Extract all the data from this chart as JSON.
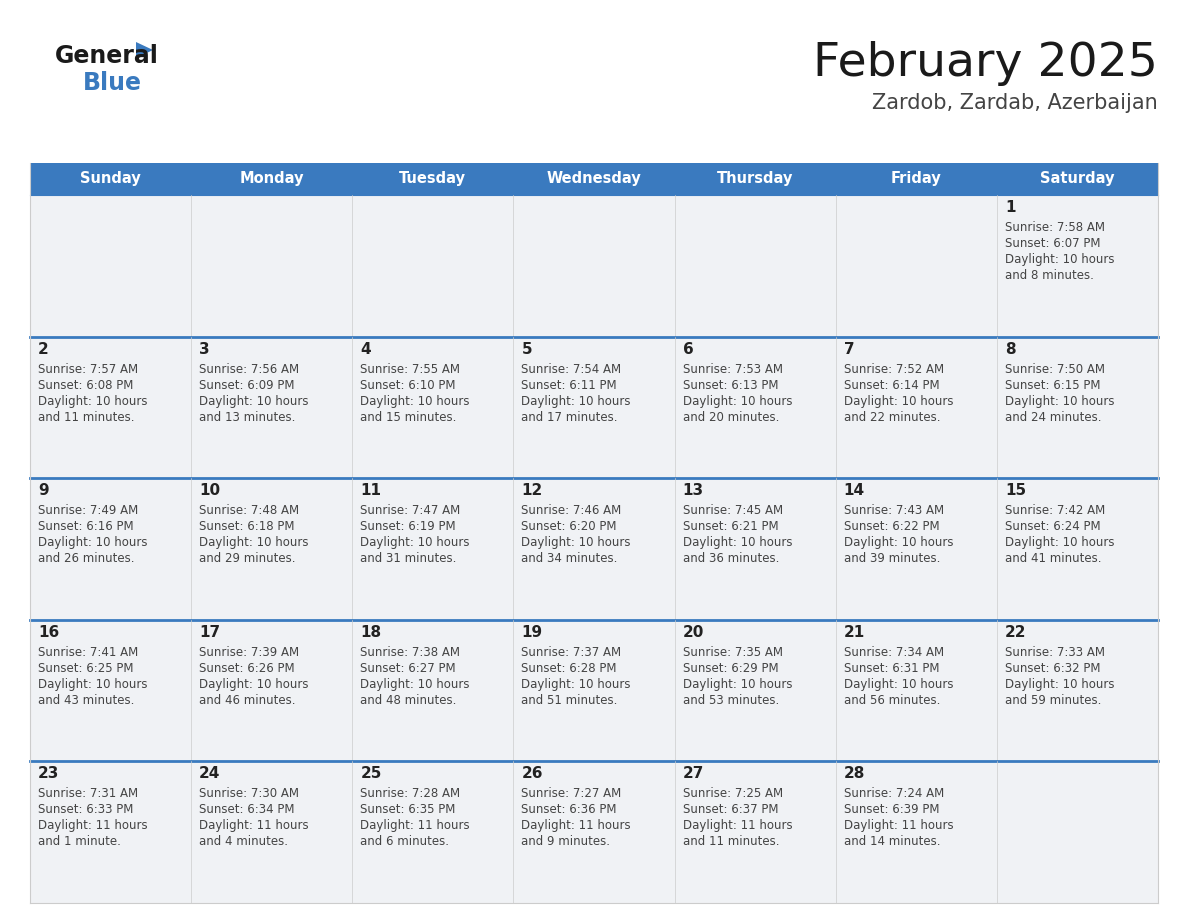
{
  "title": "February 2025",
  "subtitle": "Zardob, Zardab, Azerbaijan",
  "header_bg": "#3a7abf",
  "header_text_color": "#ffffff",
  "cell_bg": "#f0f2f5",
  "cell_bg_white": "#ffffff",
  "row_separator_color": "#3a7abf",
  "cell_border_color": "#cccccc",
  "text_color": "#333333",
  "day_num_color": "#222222",
  "info_text_color": "#444444",
  "day_headers": [
    "Sunday",
    "Monday",
    "Tuesday",
    "Wednesday",
    "Thursday",
    "Friday",
    "Saturday"
  ],
  "weeks": [
    [
      {
        "day": "",
        "info": ""
      },
      {
        "day": "",
        "info": ""
      },
      {
        "day": "",
        "info": ""
      },
      {
        "day": "",
        "info": ""
      },
      {
        "day": "",
        "info": ""
      },
      {
        "day": "",
        "info": ""
      },
      {
        "day": "1",
        "info": "Sunrise: 7:58 AM\nSunset: 6:07 PM\nDaylight: 10 hours\nand 8 minutes."
      }
    ],
    [
      {
        "day": "2",
        "info": "Sunrise: 7:57 AM\nSunset: 6:08 PM\nDaylight: 10 hours\nand 11 minutes."
      },
      {
        "day": "3",
        "info": "Sunrise: 7:56 AM\nSunset: 6:09 PM\nDaylight: 10 hours\nand 13 minutes."
      },
      {
        "day": "4",
        "info": "Sunrise: 7:55 AM\nSunset: 6:10 PM\nDaylight: 10 hours\nand 15 minutes."
      },
      {
        "day": "5",
        "info": "Sunrise: 7:54 AM\nSunset: 6:11 PM\nDaylight: 10 hours\nand 17 minutes."
      },
      {
        "day": "6",
        "info": "Sunrise: 7:53 AM\nSunset: 6:13 PM\nDaylight: 10 hours\nand 20 minutes."
      },
      {
        "day": "7",
        "info": "Sunrise: 7:52 AM\nSunset: 6:14 PM\nDaylight: 10 hours\nand 22 minutes."
      },
      {
        "day": "8",
        "info": "Sunrise: 7:50 AM\nSunset: 6:15 PM\nDaylight: 10 hours\nand 24 minutes."
      }
    ],
    [
      {
        "day": "9",
        "info": "Sunrise: 7:49 AM\nSunset: 6:16 PM\nDaylight: 10 hours\nand 26 minutes."
      },
      {
        "day": "10",
        "info": "Sunrise: 7:48 AM\nSunset: 6:18 PM\nDaylight: 10 hours\nand 29 minutes."
      },
      {
        "day": "11",
        "info": "Sunrise: 7:47 AM\nSunset: 6:19 PM\nDaylight: 10 hours\nand 31 minutes."
      },
      {
        "day": "12",
        "info": "Sunrise: 7:46 AM\nSunset: 6:20 PM\nDaylight: 10 hours\nand 34 minutes."
      },
      {
        "day": "13",
        "info": "Sunrise: 7:45 AM\nSunset: 6:21 PM\nDaylight: 10 hours\nand 36 minutes."
      },
      {
        "day": "14",
        "info": "Sunrise: 7:43 AM\nSunset: 6:22 PM\nDaylight: 10 hours\nand 39 minutes."
      },
      {
        "day": "15",
        "info": "Sunrise: 7:42 AM\nSunset: 6:24 PM\nDaylight: 10 hours\nand 41 minutes."
      }
    ],
    [
      {
        "day": "16",
        "info": "Sunrise: 7:41 AM\nSunset: 6:25 PM\nDaylight: 10 hours\nand 43 minutes."
      },
      {
        "day": "17",
        "info": "Sunrise: 7:39 AM\nSunset: 6:26 PM\nDaylight: 10 hours\nand 46 minutes."
      },
      {
        "day": "18",
        "info": "Sunrise: 7:38 AM\nSunset: 6:27 PM\nDaylight: 10 hours\nand 48 minutes."
      },
      {
        "day": "19",
        "info": "Sunrise: 7:37 AM\nSunset: 6:28 PM\nDaylight: 10 hours\nand 51 minutes."
      },
      {
        "day": "20",
        "info": "Sunrise: 7:35 AM\nSunset: 6:29 PM\nDaylight: 10 hours\nand 53 minutes."
      },
      {
        "day": "21",
        "info": "Sunrise: 7:34 AM\nSunset: 6:31 PM\nDaylight: 10 hours\nand 56 minutes."
      },
      {
        "day": "22",
        "info": "Sunrise: 7:33 AM\nSunset: 6:32 PM\nDaylight: 10 hours\nand 59 minutes."
      }
    ],
    [
      {
        "day": "23",
        "info": "Sunrise: 7:31 AM\nSunset: 6:33 PM\nDaylight: 11 hours\nand 1 minute."
      },
      {
        "day": "24",
        "info": "Sunrise: 7:30 AM\nSunset: 6:34 PM\nDaylight: 11 hours\nand 4 minutes."
      },
      {
        "day": "25",
        "info": "Sunrise: 7:28 AM\nSunset: 6:35 PM\nDaylight: 11 hours\nand 6 minutes."
      },
      {
        "day": "26",
        "info": "Sunrise: 7:27 AM\nSunset: 6:36 PM\nDaylight: 11 hours\nand 9 minutes."
      },
      {
        "day": "27",
        "info": "Sunrise: 7:25 AM\nSunset: 6:37 PM\nDaylight: 11 hours\nand 11 minutes."
      },
      {
        "day": "28",
        "info": "Sunrise: 7:24 AM\nSunset: 6:39 PM\nDaylight: 11 hours\nand 14 minutes."
      },
      {
        "day": "",
        "info": ""
      }
    ]
  ],
  "fig_width": 11.88,
  "fig_height": 9.18,
  "dpi": 100
}
